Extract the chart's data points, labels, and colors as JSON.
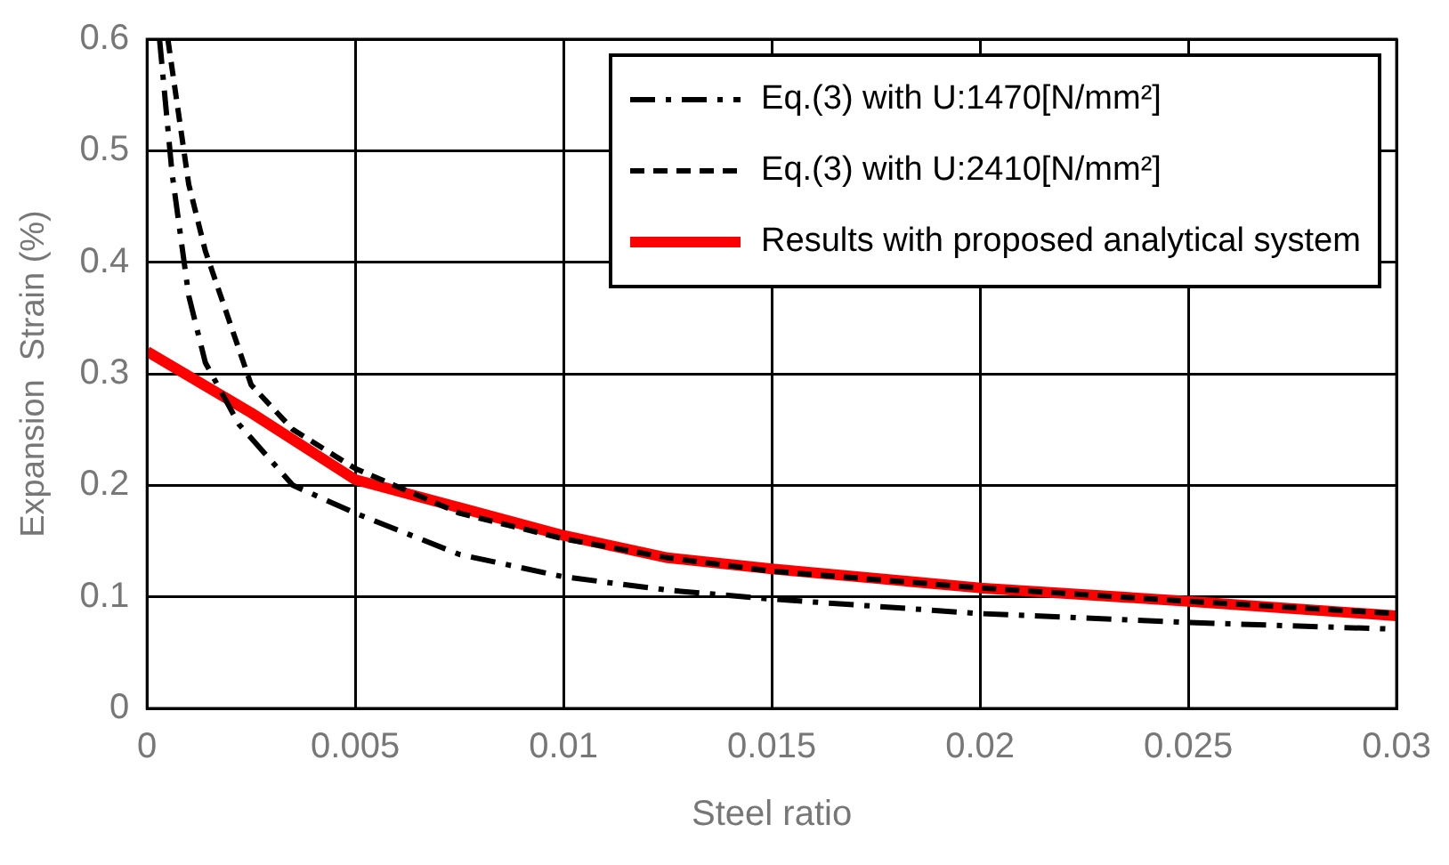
{
  "chart_data": {
    "type": "line",
    "xlabel": "Steel ratio",
    "ylabel": "Expansion  Strain (%)",
    "xlim": [
      0,
      0.03
    ],
    "xticks": [
      0,
      0.005,
      0.01,
      0.015,
      0.02,
      0.025,
      0.03
    ],
    "ylim": [
      0,
      0.6
    ],
    "yticks": [
      0,
      0.1,
      0.2,
      0.3,
      0.4,
      0.5,
      0.6
    ],
    "grid": true,
    "legend": "top right",
    "marker": "none",
    "series": [
      {
        "name": "Eq.(3) with U:1470[N/mm²]",
        "color": "#000000",
        "line_style": "dashdot",
        "x": [
          0.0003,
          0.0006,
          0.001,
          0.0014,
          0.0022,
          0.0035,
          0.005,
          0.0075,
          0.01,
          0.0125,
          0.015,
          0.02,
          0.025,
          0.03
        ],
        "values": [
          0.6,
          0.48,
          0.37,
          0.31,
          0.255,
          0.2,
          0.175,
          0.138,
          0.118,
          0.106,
          0.098,
          0.085,
          0.077,
          0.071
        ]
      },
      {
        "name": "Eq.(3) with U:2410[N/mm²]",
        "color": "#000000",
        "line_style": "dashed",
        "x": [
          0.0005,
          0.001,
          0.0014,
          0.0025,
          0.0035,
          0.005,
          0.0075,
          0.01,
          0.0125,
          0.015,
          0.02,
          0.025,
          0.03
        ],
        "values": [
          0.6,
          0.47,
          0.41,
          0.29,
          0.25,
          0.215,
          0.175,
          0.152,
          0.135,
          0.123,
          0.108,
          0.096,
          0.085
        ]
      },
      {
        "name": "Results with proposed analytical system",
        "color": "#ff0000",
        "line_style": "solid",
        "x": [
          0,
          0.0025,
          0.005,
          0.0075,
          0.01,
          0.0125,
          0.015,
          0.02,
          0.025,
          0.03
        ],
        "values": [
          0.32,
          0.265,
          0.205,
          0.18,
          0.155,
          0.135,
          0.125,
          0.108,
          0.096,
          0.083
        ]
      }
    ]
  }
}
